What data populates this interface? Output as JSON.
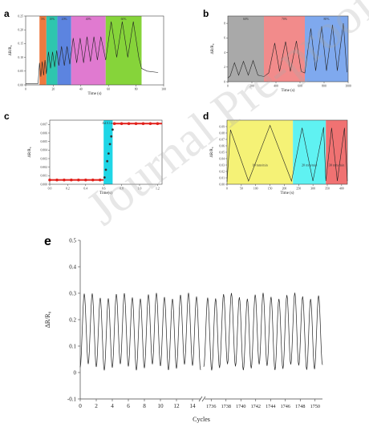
{
  "watermark": "Journal Pre-proofs",
  "chart_data": [
    {
      "panel": "a",
      "type": "line",
      "ylabel": "ΔR/R₀",
      "xlabel": "Time (s)",
      "xlim": [
        0,
        100
      ],
      "ylim": [
        0,
        0.25
      ],
      "xticks": [
        0,
        20,
        40,
        60,
        80,
        100
      ],
      "yticks": [
        0,
        0.05,
        0.1,
        0.15,
        0.2,
        0.25
      ],
      "regions": [
        {
          "x0": 10,
          "x1": 15,
          "label": "5%",
          "color": "#ee7a3f"
        },
        {
          "x0": 15,
          "x1": 23,
          "label": "10%",
          "color": "#2ec6ae"
        },
        {
          "x0": 23,
          "x1": 33,
          "label": "20%",
          "color": "#5c84e0"
        },
        {
          "x0": 33,
          "x1": 58,
          "label": "40%",
          "color": "#e07ad0"
        },
        {
          "x0": 58,
          "x1": 84,
          "label": "60%",
          "color": "#86d43a"
        }
      ],
      "series": [
        {
          "points": [
            [
              0,
              0.005
            ],
            [
              9,
              0.005
            ],
            [
              10,
              0.08
            ],
            [
              11,
              0.03
            ],
            [
              12,
              0.085
            ],
            [
              13,
              0.035
            ],
            [
              14,
              0.09
            ],
            [
              15,
              0.04
            ],
            [
              16.5,
              0.12
            ],
            [
              18,
              0.06
            ],
            [
              19.5,
              0.12
            ],
            [
              21,
              0.065
            ],
            [
              22.5,
              0.125
            ],
            [
              24,
              0.07
            ],
            [
              26,
              0.14
            ],
            [
              28,
              0.07
            ],
            [
              30,
              0.14
            ],
            [
              32,
              0.075
            ],
            [
              34.5,
              0.17
            ],
            [
              37,
              0.08
            ],
            [
              39.5,
              0.17
            ],
            [
              42,
              0.08
            ],
            [
              44.5,
              0.175
            ],
            [
              47,
              0.085
            ],
            [
              49.5,
              0.175
            ],
            [
              52,
              0.09
            ],
            [
              54.5,
              0.175
            ],
            [
              58,
              0.09
            ],
            [
              62,
              0.23
            ],
            [
              66,
              0.1
            ],
            [
              70,
              0.23
            ],
            [
              74,
              0.1
            ],
            [
              78,
              0.23
            ],
            [
              82,
              0.1
            ],
            [
              84,
              0.06
            ],
            [
              88,
              0.05
            ],
            [
              96,
              0.045
            ]
          ]
        }
      ]
    },
    {
      "panel": "b",
      "type": "line",
      "ylabel": "ΔR/R₀",
      "xlabel": "Time (s)",
      "xlim": [
        0,
        1000
      ],
      "ylim": [
        0,
        9
      ],
      "xticks": [
        0,
        200,
        400,
        600,
        800,
        1000
      ],
      "yticks": [
        0,
        2,
        4,
        6,
        8
      ],
      "regions": [
        {
          "x0": 0,
          "x1": 300,
          "label": "60%",
          "color": "#a9a9a9"
        },
        {
          "x0": 300,
          "x1": 640,
          "label": "70%",
          "color": "#f28b8b"
        },
        {
          "x0": 640,
          "x1": 1000,
          "label": "80%",
          "color": "#7fa9ee"
        }
      ],
      "series": [
        {
          "points": [
            [
              0,
              0.5
            ],
            [
              20,
              0.8
            ],
            [
              55,
              2.6
            ],
            [
              90,
              0.9
            ],
            [
              130,
              2.8
            ],
            [
              170,
              0.9
            ],
            [
              210,
              2.9
            ],
            [
              250,
              0.9
            ],
            [
              300,
              0.7
            ],
            [
              340,
              1.2
            ],
            [
              390,
              5.3
            ],
            [
              430,
              1.4
            ],
            [
              480,
              5.5
            ],
            [
              520,
              1.4
            ],
            [
              570,
              5.6
            ],
            [
              610,
              1.4
            ],
            [
              640,
              1.2
            ],
            [
              690,
              7.3
            ],
            [
              730,
              1.5
            ],
            [
              780,
              7.6
            ],
            [
              820,
              1.5
            ],
            [
              870,
              7.8
            ],
            [
              910,
              1.5
            ],
            [
              960,
              8.0
            ],
            [
              990,
              1.3
            ]
          ]
        }
      ]
    },
    {
      "panel": "c",
      "type": "scatter",
      "ylabel": "ΔR/R₀",
      "xlabel": "Time(s)",
      "xlim": [
        0,
        1.25
      ],
      "ylim": [
        0,
        0.0075
      ],
      "xticks": [
        0,
        0.2,
        0.4,
        0.6,
        0.8,
        1.0,
        1.2
      ],
      "yticks": [
        0,
        0.001,
        0.002,
        0.003,
        0.004,
        0.005,
        0.006,
        0.007
      ],
      "regions": [
        {
          "x0": 0.6,
          "x1": 0.7,
          "label": "ΔΔ 0.1ms",
          "color": "#1fd6e6"
        }
      ],
      "series": [
        {
          "points": [
            [
              0,
              0.0005
            ],
            [
              0.08,
              0.0005
            ],
            [
              0.16,
              0.0005
            ],
            [
              0.24,
              0.0005
            ],
            [
              0.32,
              0.0005
            ],
            [
              0.4,
              0.0005
            ],
            [
              0.48,
              0.0005
            ],
            [
              0.56,
              0.0005
            ],
            [
              0.61,
              0.0008
            ],
            [
              0.625,
              0.0017
            ],
            [
              0.64,
              0.0027
            ],
            [
              0.655,
              0.0036
            ],
            [
              0.67,
              0.0047
            ],
            [
              0.685,
              0.0056
            ],
            [
              0.7,
              0.0064
            ],
            [
              0.72,
              0.0071
            ],
            [
              0.8,
              0.0071
            ],
            [
              0.88,
              0.0071
            ],
            [
              0.96,
              0.0071
            ],
            [
              1.04,
              0.0071
            ],
            [
              1.12,
              0.0071
            ],
            [
              1.2,
              0.0071
            ]
          ]
        }
      ]
    },
    {
      "panel": "d",
      "type": "line",
      "ylabel": "ΔR/R₀",
      "xlabel": "Time (s)",
      "xlim": [
        0,
        420
      ],
      "ylim": [
        0,
        0.1
      ],
      "xticks": [
        0,
        50,
        100,
        150,
        200,
        250,
        300,
        350,
        400
      ],
      "yticks": [
        0,
        0.01,
        0.02,
        0.03,
        0.04,
        0.05,
        0.06,
        0.07,
        0.08,
        0.09
      ],
      "regions": [
        {
          "x0": 0,
          "x1": 230,
          "label": "10 mm/min",
          "color": "#f5f276"
        },
        {
          "x0": 230,
          "x1": 345,
          "label": "20 mm/min",
          "color": "#5ff2f2"
        },
        {
          "x0": 345,
          "x1": 420,
          "label": "30 mm/min",
          "color": "#f07272"
        }
      ],
      "series": [
        {
          "points": [
            [
              0,
              0.004
            ],
            [
              12,
              0.085
            ],
            [
              75,
              0.005
            ],
            [
              150,
              0.092
            ],
            [
              225,
              0.005
            ],
            [
              262,
              0.088
            ],
            [
              300,
              0.005
            ],
            [
              337,
              0.089
            ],
            [
              345,
              0.005
            ],
            [
              365,
              0.088
            ],
            [
              385,
              0.005
            ],
            [
              410,
              0.088
            ],
            [
              420,
              0.005
            ]
          ]
        }
      ]
    },
    {
      "panel": "e",
      "type": "line",
      "ylabel": "ΔR/R₀",
      "xlabel": "Cycles",
      "ylim": [
        -0.1,
        0.5
      ],
      "yticks": [
        -0.1,
        0,
        0.1,
        0.2,
        0.3,
        0.4,
        0.5
      ],
      "segments": [
        {
          "xlim": [
            0,
            15
          ],
          "xticks": [
            0,
            2,
            4,
            6,
            8,
            10,
            12,
            14
          ],
          "xtick_labels": [
            "0",
            "2",
            "4",
            "6",
            "8",
            "10",
            "12",
            "14"
          ],
          "cycles": 15,
          "peak": 0.29,
          "trough": 0.02
        },
        {
          "xlim": [
            1735,
            1751
          ],
          "xticks": [
            1736,
            1738,
            1740,
            1742,
            1744,
            1746,
            1748,
            1750
          ],
          "xtick_labels": [
            "1736",
            "1738",
            "1740",
            "1742",
            "1744",
            "1746",
            "1748",
            "1750"
          ],
          "cycles": 15,
          "peak": 0.29,
          "trough": 0.02
        }
      ]
    }
  ]
}
